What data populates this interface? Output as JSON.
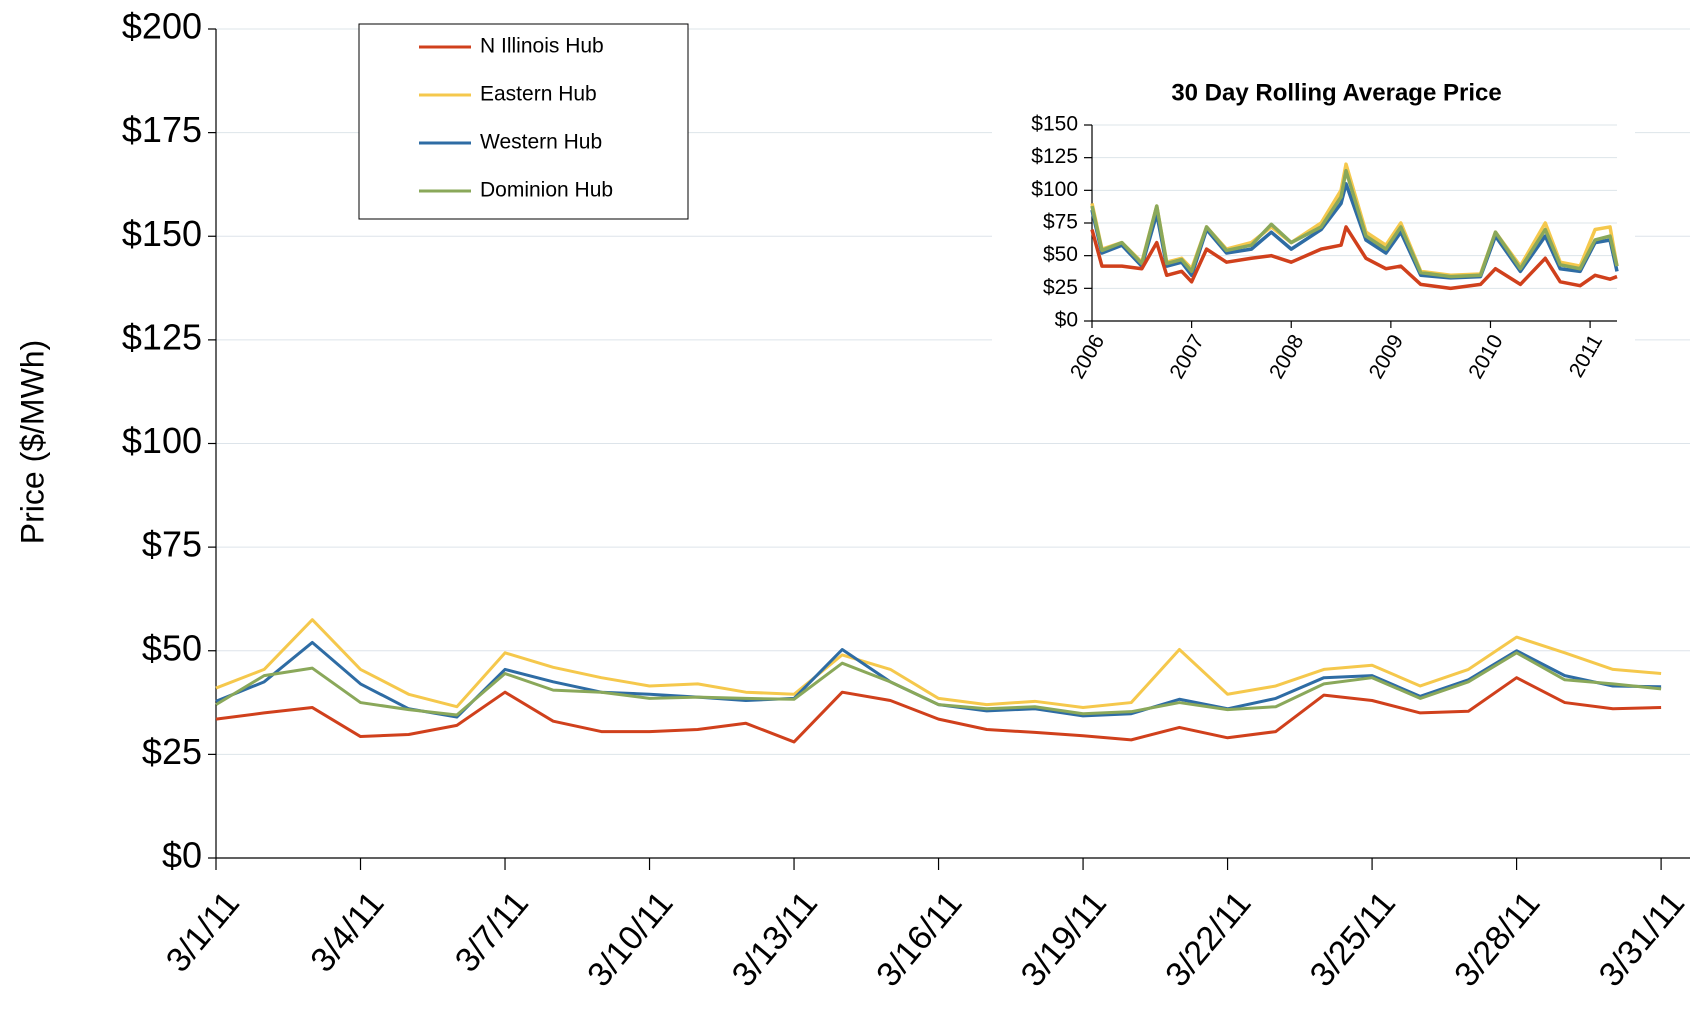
{
  "chart_data": [
    {
      "type": "line",
      "y_label": "Price ($/MWh)",
      "categories": [
        "3/1/11",
        null,
        null,
        "3/4/11",
        null,
        null,
        "3/7/11",
        null,
        null,
        "3/10/11",
        null,
        null,
        "3/13/11",
        null,
        null,
        "3/16/11",
        null,
        null,
        "3/19/11",
        null,
        null,
        "3/22/11",
        null,
        null,
        "3/25/11",
        null,
        null,
        "3/28/11",
        null,
        null,
        "3/31/11"
      ],
      "ylim": [
        0,
        200
      ],
      "yticks": [
        {
          "value": 0,
          "label": "$0"
        },
        {
          "value": 25,
          "label": "$25"
        },
        {
          "value": 50,
          "label": "$50"
        },
        {
          "value": 75,
          "label": "$75"
        },
        {
          "value": 100,
          "label": "$100"
        },
        {
          "value": 125,
          "label": "$125"
        },
        {
          "value": 150,
          "label": "$150"
        },
        {
          "value": 175,
          "label": "$175"
        },
        {
          "value": 200,
          "label": "$200"
        }
      ],
      "grid": true,
      "legend": "top-left",
      "series": [
        {
          "name": "N Illinois Hub",
          "color": "#d0401c",
          "values": [
            33.5,
            35,
            36.3,
            29.3,
            29.8,
            32,
            40,
            33,
            30.5,
            30.5,
            31,
            32.5,
            28,
            40,
            38,
            33.5,
            31,
            30.3,
            29.5,
            28.5,
            31.5,
            29,
            30.5,
            39.3,
            38,
            35,
            35.4,
            43.5,
            37.5,
            36,
            36.3
          ]
        },
        {
          "name": "Eastern Hub",
          "color": "#f5c84c",
          "values": [
            41,
            45.5,
            57.5,
            45.5,
            39.5,
            36.5,
            49.5,
            46,
            43.5,
            41.5,
            42,
            40,
            39.5,
            49,
            45.5,
            38.5,
            37,
            37.8,
            36.3,
            37.5,
            50.3,
            39.5,
            41.5,
            45.5,
            46.5,
            41.5,
            45.5,
            53.3,
            49.5,
            45.5,
            44.5
          ]
        },
        {
          "name": "Western Hub",
          "color": "#2e6ca4",
          "values": [
            37.8,
            42.5,
            52,
            42,
            36,
            34,
            45.5,
            42.5,
            40,
            39.5,
            38.8,
            38,
            38.5,
            50.3,
            42.5,
            37,
            35.5,
            36,
            34.3,
            34.8,
            38.3,
            36,
            38.5,
            43.5,
            44,
            39,
            43,
            50,
            44,
            41.5,
            41.3
          ]
        },
        {
          "name": "Dominion Hub",
          "color": "#8aa85a",
          "values": [
            37,
            44,
            45.8,
            37.5,
            35.8,
            34.5,
            44.5,
            40.5,
            40,
            38.5,
            38.8,
            38.5,
            38.3,
            47,
            42.5,
            37,
            36,
            36.5,
            34.8,
            35.3,
            37.5,
            35.8,
            36.5,
            42,
            43.5,
            38.5,
            42.5,
            49.5,
            43,
            42,
            40.8
          ]
        }
      ]
    },
    {
      "type": "line",
      "title": "30 Day Rolling Average Price",
      "x": [
        2006.0,
        2006.1,
        2006.3,
        2006.5,
        2006.65,
        2006.75,
        2006.9,
        2007.0,
        2007.15,
        2007.35,
        2007.6,
        2007.8,
        2008.0,
        2008.3,
        2008.5,
        2008.55,
        2008.75,
        2008.95,
        2009.1,
        2009.3,
        2009.6,
        2009.9,
        2010.05,
        2010.3,
        2010.55,
        2010.7,
        2010.9,
        2011.05,
        2011.2,
        2011.27
      ],
      "xlim": [
        2006,
        2011.27
      ],
      "xticks": [
        2006,
        2007,
        2008,
        2009,
        2010,
        2011
      ],
      "ylim": [
        0,
        150
      ],
      "yticks": [
        {
          "value": 0,
          "label": "$0"
        },
        {
          "value": 25,
          "label": "$25"
        },
        {
          "value": 50,
          "label": "$50"
        },
        {
          "value": 75,
          "label": "$75"
        },
        {
          "value": 100,
          "label": "$100"
        },
        {
          "value": 125,
          "label": "$125"
        },
        {
          "value": 150,
          "label": "$150"
        }
      ],
      "grid": true,
      "series": [
        {
          "color": "#f5c84c",
          "values": [
            90,
            55,
            60,
            45,
            88,
            45,
            48,
            40,
            72,
            55,
            60,
            72,
            60,
            75,
            100,
            120,
            68,
            58,
            75,
            38,
            35,
            36,
            68,
            42,
            75,
            45,
            42,
            70,
            72,
            42
          ]
        },
        {
          "color": "#2e6ca4",
          "values": [
            85,
            52,
            58,
            42,
            82,
            42,
            45,
            35,
            70,
            52,
            55,
            68,
            55,
            70,
            90,
            105,
            62,
            52,
            68,
            35,
            33,
            34,
            65,
            38,
            65,
            40,
            38,
            60,
            62,
            38
          ]
        },
        {
          "color": "#8aa85a",
          "values": [
            88,
            54,
            60,
            44,
            88,
            44,
            47,
            38,
            72,
            54,
            58,
            74,
            60,
            72,
            95,
            115,
            65,
            55,
            72,
            37,
            34,
            35,
            68,
            40,
            70,
            43,
            40,
            62,
            65,
            42
          ]
        },
        {
          "color": "#d0401c",
          "values": [
            70,
            42,
            42,
            40,
            60,
            35,
            38,
            30,
            55,
            45,
            48,
            50,
            45,
            55,
            58,
            72,
            48,
            40,
            42,
            28,
            25,
            28,
            40,
            28,
            48,
            30,
            27,
            35,
            32,
            34
          ]
        }
      ]
    }
  ]
}
